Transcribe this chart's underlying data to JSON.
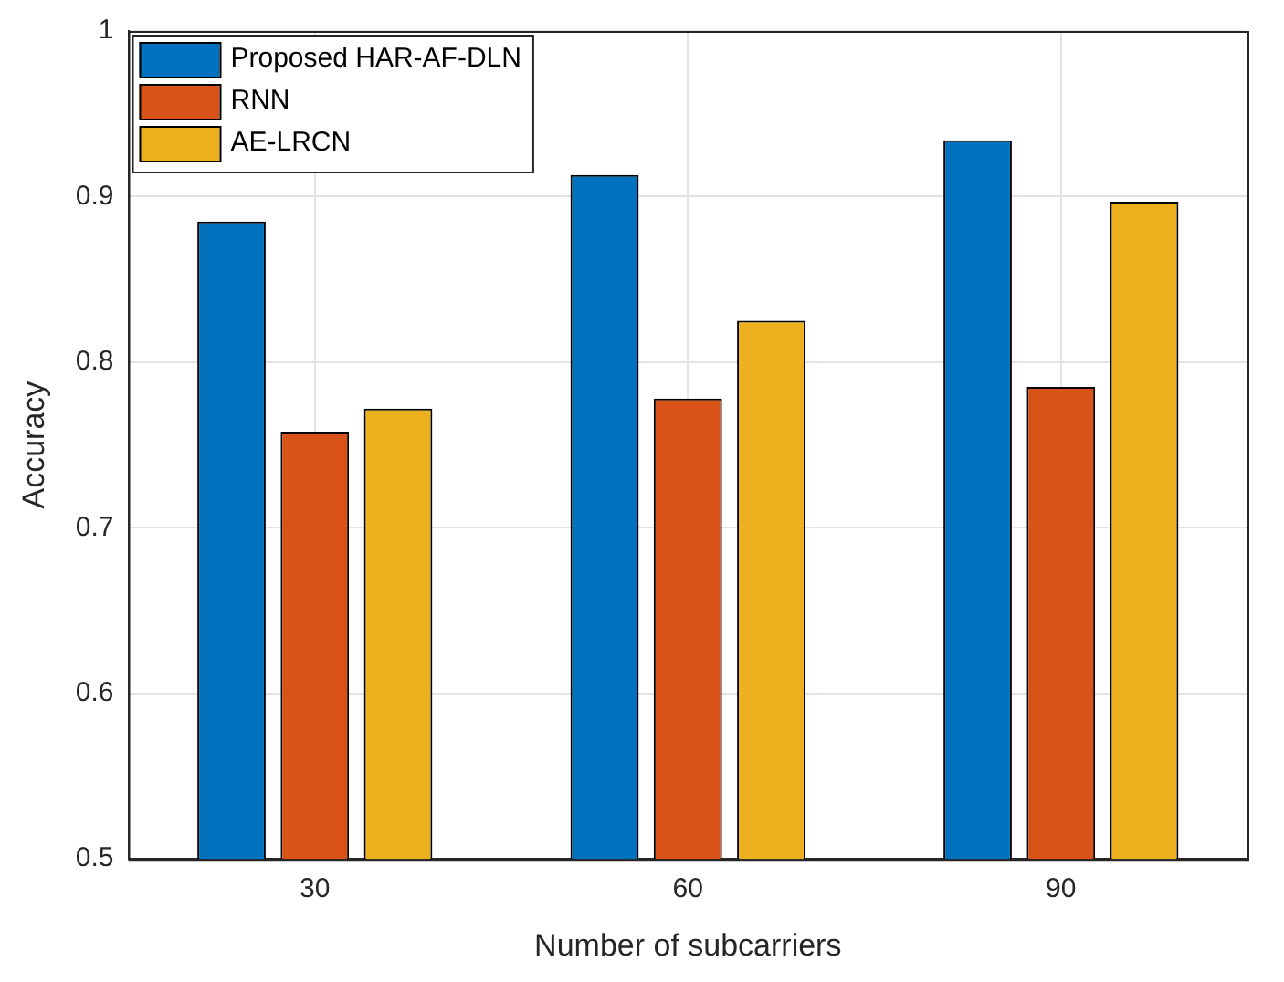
{
  "chart_data": {
    "type": "bar",
    "xlabel": "Number of subcarriers",
    "ylabel": "Accuracy",
    "categories": [
      "30",
      "60",
      "90"
    ],
    "series": [
      {
        "name": "Proposed HAR-AF-DLN",
        "color": "#0072bd",
        "values": [
          0.885,
          0.913,
          0.934
        ]
      },
      {
        "name": "RNN",
        "color": "#d95319",
        "values": [
          0.758,
          0.778,
          0.785
        ]
      },
      {
        "name": "AE-LRCN",
        "color": "#edb120",
        "values": [
          0.772,
          0.825,
          0.897
        ]
      }
    ],
    "ylim": [
      0.5,
      1
    ],
    "yticks": [
      0.5,
      0.6,
      0.7,
      0.8,
      0.9,
      1
    ],
    "grid": true,
    "legend": "top left"
  }
}
